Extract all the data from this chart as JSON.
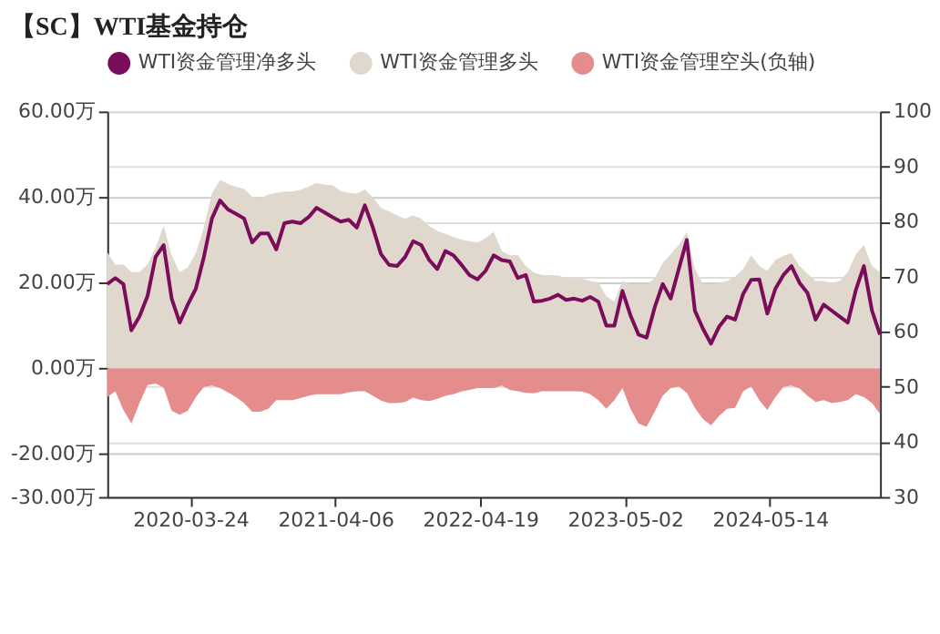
{
  "chart_data": {
    "type": "line",
    "title": "【SC】WTI基金持仓",
    "x": [
      "2019-08-20",
      "2019-09-10",
      "2019-10-01",
      "2019-10-22",
      "2019-11-12",
      "2019-12-03",
      "2019-12-24",
      "2020-01-14",
      "2020-02-04",
      "2020-02-25",
      "2020-03-17",
      "2020-04-07",
      "2020-04-28",
      "2020-05-19",
      "2020-06-09",
      "2020-06-30",
      "2020-07-21",
      "2020-08-11",
      "2020-09-01",
      "2020-09-22",
      "2020-10-13",
      "2020-11-03",
      "2020-11-24",
      "2020-12-15",
      "2021-01-05",
      "2021-01-26",
      "2021-02-16",
      "2021-03-09",
      "2021-03-30",
      "2021-04-20",
      "2021-05-11",
      "2021-06-01",
      "2021-06-22",
      "2021-07-13",
      "2021-08-03",
      "2021-08-24",
      "2021-09-14",
      "2021-10-05",
      "2021-10-26",
      "2021-11-16",
      "2021-12-07",
      "2021-12-28",
      "2022-01-18",
      "2022-02-08",
      "2022-03-01",
      "2022-03-22",
      "2022-04-12",
      "2022-05-03",
      "2022-05-24",
      "2022-06-14",
      "2022-07-05",
      "2022-07-26",
      "2022-08-16",
      "2022-09-06",
      "2022-09-27",
      "2022-10-18",
      "2022-11-08",
      "2022-11-29",
      "2022-12-20",
      "2023-01-10",
      "2023-01-31",
      "2023-02-21",
      "2023-03-14",
      "2023-04-04",
      "2023-04-25",
      "2023-05-16",
      "2023-06-06",
      "2023-06-27",
      "2023-07-18",
      "2023-08-08",
      "2023-08-29",
      "2023-09-19",
      "2023-10-10",
      "2023-10-31",
      "2023-11-21",
      "2023-12-12",
      "2024-01-02",
      "2024-01-23",
      "2024-02-13",
      "2024-03-05",
      "2024-03-26",
      "2024-04-16",
      "2024-05-07",
      "2024-05-28",
      "2024-06-18",
      "2024-07-09",
      "2024-07-30",
      "2024-08-20",
      "2024-09-10",
      "2024-10-01",
      "2024-10-22",
      "2024-11-12",
      "2024-12-03",
      "2024-12-24",
      "2025-01-14",
      "2025-02-04",
      "2025-02-25"
    ],
    "series": [
      {
        "name": "WTI资金管理净多头",
        "color": "#7b0c5c",
        "values": [
          19.7,
          21.1,
          19.7,
          8.9,
          12.1,
          16.9,
          26.0,
          28.8,
          16.3,
          10.7,
          14.9,
          18.6,
          26.0,
          35.0,
          39.2,
          37.1,
          36.1,
          35.0,
          29.4,
          31.5,
          31.5,
          27.8,
          33.9,
          34.3,
          33.9,
          35.3,
          37.5,
          36.4,
          35.3,
          34.3,
          34.7,
          32.9,
          38.1,
          32.9,
          26.7,
          24.2,
          23.9,
          26.0,
          29.7,
          28.8,
          25.3,
          23.2,
          27.4,
          26.4,
          24.2,
          21.8,
          20.8,
          22.8,
          26.4,
          25.3,
          25.0,
          21.1,
          21.8,
          15.6,
          15.8,
          16.3,
          17.2,
          16.0,
          16.3,
          15.8,
          16.7,
          15.6,
          10.0,
          10.0,
          18.1,
          12.4,
          7.9,
          7.2,
          14.2,
          19.7,
          16.3,
          23.2,
          30.0,
          13.5,
          9.3,
          5.8,
          9.7,
          12.1,
          11.4,
          17.4,
          20.7,
          20.8,
          12.8,
          18.6,
          21.8,
          23.9,
          20.0,
          17.6,
          11.4,
          14.9,
          13.5,
          12.1,
          10.7,
          18.3,
          23.9,
          13.5,
          7.9
        ]
      },
      {
        "name": "WTI资金管理多头",
        "type": "area",
        "color": "#e0d8cc",
        "values": [
          27.1,
          24.2,
          24.3,
          22.5,
          22.5,
          24.3,
          28.1,
          33.3,
          26.4,
          22.5,
          23.6,
          26.9,
          32.9,
          40.8,
          44.0,
          43.1,
          42.4,
          41.9,
          40.1,
          39.6,
          40.6,
          41.0,
          41.3,
          41.3,
          41.7,
          42.4,
          43.3,
          42.9,
          42.8,
          41.4,
          41.0,
          40.8,
          41.8,
          39.9,
          37.5,
          36.7,
          35.7,
          35.0,
          35.7,
          35.0,
          33.3,
          32.1,
          31.4,
          30.7,
          30.1,
          29.7,
          29.4,
          30.4,
          31.9,
          27.4,
          26.4,
          26.5,
          23.9,
          22.4,
          21.8,
          21.8,
          21.7,
          21.1,
          21.1,
          21.0,
          20.4,
          20.1,
          16.9,
          15.6,
          20.4,
          19.7,
          19.7,
          19.7,
          21.0,
          24.6,
          26.7,
          28.8,
          31.9,
          23.2,
          19.7,
          19.7,
          20.0,
          20.4,
          21.4,
          23.2,
          26.4,
          23.9,
          22.8,
          25.3,
          26.3,
          26.9,
          23.9,
          22.1,
          20.4,
          20.4,
          20.0,
          20.4,
          22.5,
          26.7,
          28.8,
          23.9,
          22.5
        ]
      },
      {
        "name": "WTI资金管理空头(负轴)",
        "type": "area",
        "color": "#e58c8c",
        "values": [
          -6.7,
          -5.3,
          -9.7,
          -12.9,
          -8.1,
          -3.9,
          -3.5,
          -4.4,
          -9.9,
          -10.8,
          -9.9,
          -6.7,
          -4.3,
          -4.0,
          -4.6,
          -5.6,
          -6.7,
          -8.1,
          -10.1,
          -10.1,
          -9.4,
          -7.4,
          -7.4,
          -7.4,
          -6.9,
          -6.4,
          -6.0,
          -6.0,
          -6.0,
          -6.0,
          -5.6,
          -5.3,
          -5.3,
          -6.4,
          -7.5,
          -8.1,
          -8.1,
          -7.8,
          -6.8,
          -7.4,
          -7.6,
          -7.1,
          -6.4,
          -6.0,
          -5.4,
          -5.0,
          -4.6,
          -4.6,
          -4.6,
          -4.0,
          -5.0,
          -5.3,
          -5.7,
          -5.8,
          -5.3,
          -5.3,
          -5.3,
          -5.3,
          -5.3,
          -5.4,
          -6.0,
          -7.4,
          -9.4,
          -7.4,
          -4.6,
          -9.4,
          -12.9,
          -13.6,
          -10.1,
          -6.4,
          -4.6,
          -4.2,
          -5.7,
          -9.2,
          -11.8,
          -13.3,
          -11.1,
          -9.4,
          -9.2,
          -5.3,
          -4.2,
          -7.4,
          -9.7,
          -6.7,
          -4.3,
          -4.0,
          -4.7,
          -6.4,
          -7.8,
          -7.4,
          -8.1,
          -7.8,
          -7.4,
          -6.0,
          -6.7,
          -8.1,
          -10.6
        ]
      }
    ],
    "xlim": [
      "2019-08-20",
      "2025-02-25"
    ],
    "xticks": [
      "2020-03-24",
      "2021-04-06",
      "2022-04-19",
      "2023-05-02",
      "2024-05-14"
    ],
    "ylim": [
      -30,
      60
    ],
    "yticks": [
      {
        "value": -30,
        "label": "-30.00万"
      },
      {
        "value": -20,
        "label": "-20.00万"
      },
      {
        "value": 0,
        "label": "0.00万"
      },
      {
        "value": 20,
        "label": "20.00万"
      },
      {
        "value": 40,
        "label": "40.00万"
      },
      {
        "value": 60,
        "label": "60.00万"
      }
    ],
    "y2lim": [
      30,
      100
    ],
    "y2ticks": [
      30,
      40,
      50,
      60,
      70,
      80,
      90,
      100
    ],
    "grid": "y",
    "legend": "top"
  }
}
